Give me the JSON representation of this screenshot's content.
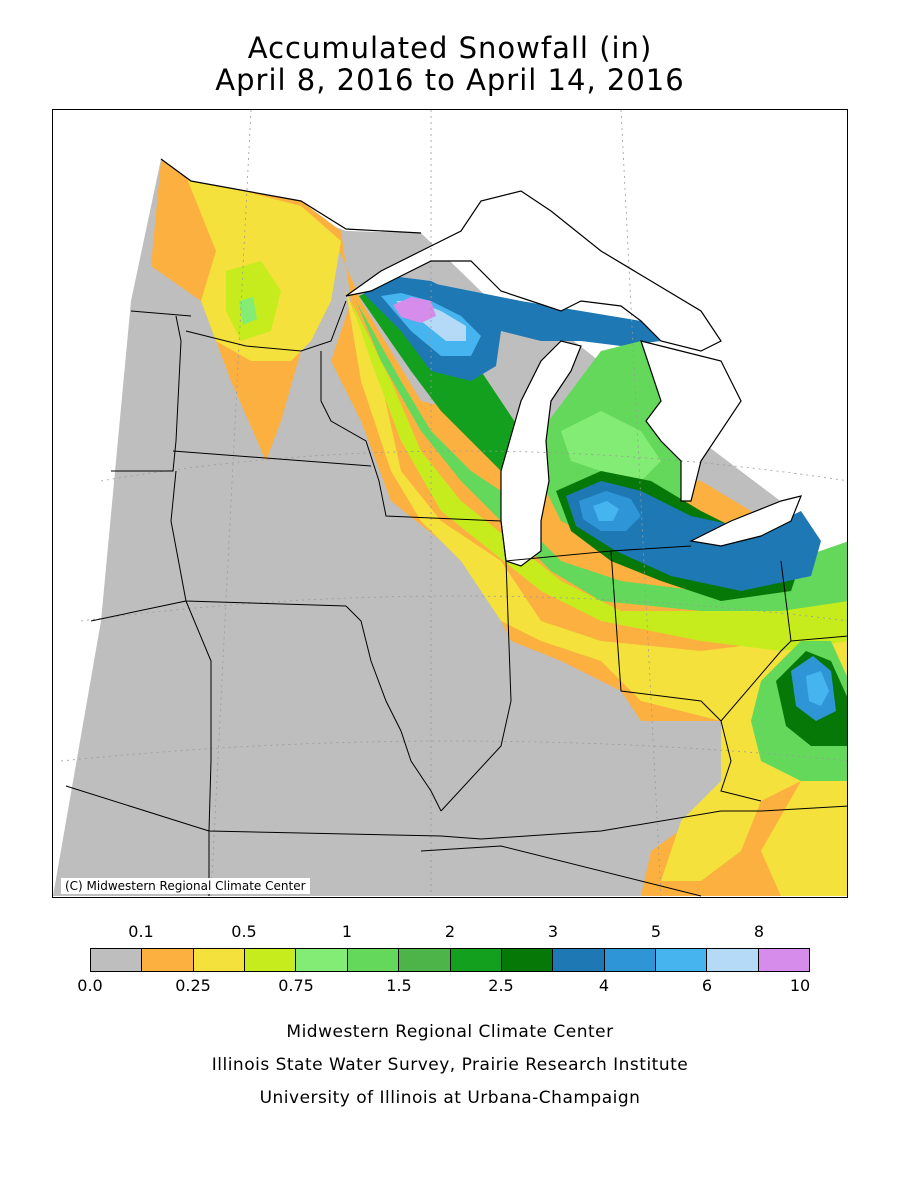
{
  "title": {
    "line1": "Accumulated Snowfall (in)",
    "line2": "April 8, 2016 to April 14, 2016"
  },
  "map": {
    "copyright": "(C) Midwestern Regional Climate Center",
    "colors": {
      "none": "#bebebe",
      "water": "#ffffff",
      "c0_1": "#fcb040",
      "c0_25": "#f4e13c",
      "c0_5": "#c6ec1e",
      "c0_75": "#82ec74",
      "c1": "#64d85a",
      "c1_5": "#4cb448",
      "c2": "#12a01e",
      "c2_5": "#067808",
      "c3": "#1e78b4",
      "c4": "#2e96d6",
      "c5": "#46b4ee",
      "c6": "#b4daf8",
      "c8": "#d68cea"
    }
  },
  "legend": {
    "top_labels": [
      "0.1",
      "0.5",
      "1",
      "2",
      "3",
      "5",
      "8"
    ],
    "bottom_labels": [
      "0.0",
      "0.25",
      "0.75",
      "1.5",
      "2.5",
      "4",
      "6",
      "10"
    ],
    "swatches": [
      "#bebebe",
      "#fcb040",
      "#f4e13c",
      "#c6ec1e",
      "#82ec74",
      "#64d85a",
      "#4cb448",
      "#12a01e",
      "#067808",
      "#1e78b4",
      "#2e96d6",
      "#46b4ee",
      "#b4daf8",
      "#d68cea"
    ]
  },
  "credits": {
    "line1": "Midwestern Regional Climate Center",
    "line2": "Illinois State Water Survey, Prairie Research Institute",
    "line3": "University of Illinois at Urbana-Champaign"
  }
}
